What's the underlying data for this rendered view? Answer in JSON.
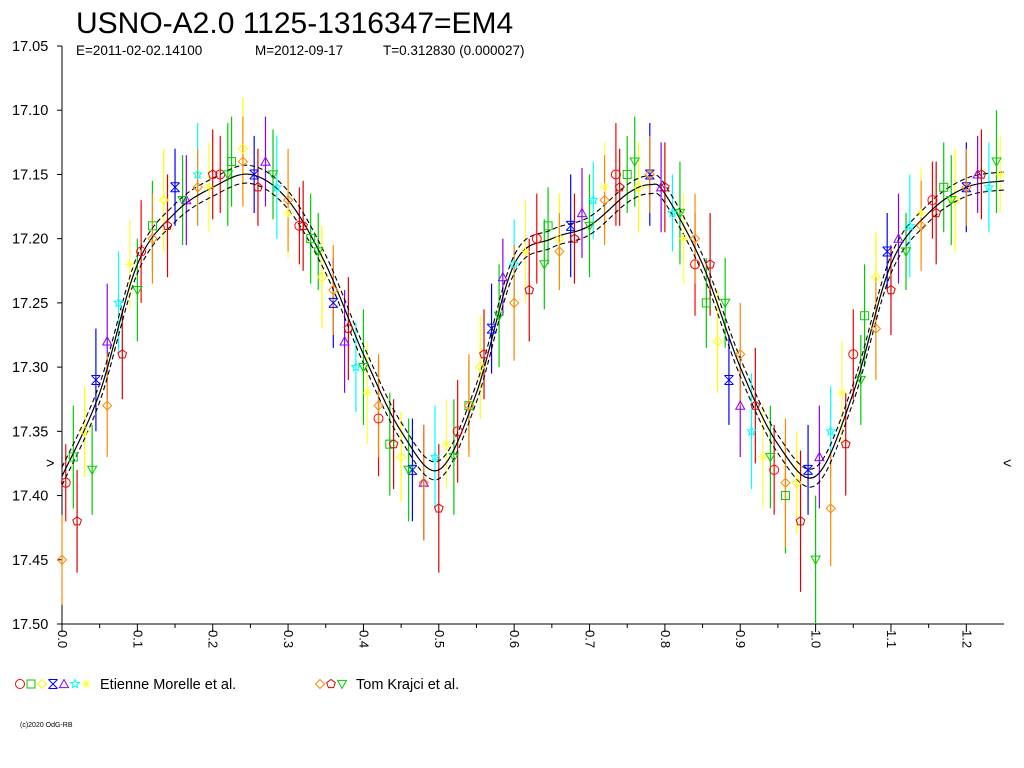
{
  "chart_data": {
    "type": "scatter",
    "title": "USNO-A2.0 1125-1316347=EM4",
    "epoch_label": "E=2011-02-02.14100",
    "max_label": "M=2012-09-17",
    "period_label": "T=0.312830 (0.000027)",
    "xlabel": "",
    "ylabel": "",
    "xlim": [
      0.0,
      1.25
    ],
    "ylim": [
      17.05,
      17.5
    ],
    "y_inverted": true,
    "yticks": [
      "17.05",
      "17.10",
      "17.15",
      "17.20",
      "17.25",
      "17.30",
      "17.35",
      "17.40",
      "17.45",
      "17.50"
    ],
    "xticks": [
      "0.0",
      "0.1",
      "0.2",
      "0.3",
      "0.4",
      "0.5",
      "0.6",
      "0.7",
      "0.8",
      "0.9",
      "1.0",
      "1.1",
      "1.2"
    ],
    "grid": false,
    "left_marker": ">",
    "right_marker": "<",
    "fit_curve": {
      "phase": [
        0.0,
        0.05,
        0.1,
        0.15,
        0.2,
        0.25,
        0.3,
        0.35,
        0.4,
        0.45,
        0.5,
        0.55,
        0.6,
        0.65,
        0.7,
        0.75,
        0.78,
        0.8,
        0.85,
        0.9,
        0.95,
        1.0,
        1.05,
        1.1,
        1.15,
        1.2,
        1.25
      ],
      "mag": [
        17.385,
        17.32,
        17.22,
        17.18,
        17.16,
        17.15,
        17.17,
        17.22,
        17.29,
        17.35,
        17.38,
        17.32,
        17.22,
        17.2,
        17.19,
        17.165,
        17.158,
        17.165,
        17.22,
        17.3,
        17.36,
        17.385,
        17.32,
        17.22,
        17.18,
        17.16,
        17.155
      ],
      "band_offset": 0.007
    },
    "series": [
      {
        "name": "Etienne Morelle et al.",
        "symbols": [
          "circle",
          "square",
          "diamond",
          "x-square",
          "triangle",
          "star",
          "asterisk"
        ],
        "colors": [
          "#ff0000",
          "#00cc00",
          "#ffff00",
          "#0000ff",
          "#8800ff",
          "#00ffff",
          "#ffff33"
        ],
        "phase": [
          0.005,
          0.015,
          0.03,
          0.045,
          0.06,
          0.075,
          0.09,
          0.105,
          0.12,
          0.135,
          0.15,
          0.165,
          0.18,
          0.195,
          0.21,
          0.225,
          0.24,
          0.255,
          0.27,
          0.285,
          0.3,
          0.315,
          0.33,
          0.345,
          0.36,
          0.375,
          0.39,
          0.405,
          0.42,
          0.435,
          0.45,
          0.465,
          0.48,
          0.495,
          0.51,
          0.525,
          0.54,
          0.555,
          0.57,
          0.585,
          0.6,
          0.615,
          0.63,
          0.645,
          0.66,
          0.675,
          0.69,
          0.705,
          0.72,
          0.735,
          0.75,
          0.765,
          0.78,
          0.795,
          0.81,
          0.825,
          0.84,
          0.855,
          0.87,
          0.885,
          0.9,
          0.915,
          0.93,
          0.945,
          0.96,
          0.975,
          0.99,
          1.005,
          1.02,
          1.035,
          1.05,
          1.065,
          1.08,
          1.095,
          1.11,
          1.125,
          1.14,
          1.155,
          1.17,
          1.185,
          1.2,
          1.215,
          1.23,
          1.245
        ],
        "mag": [
          17.39,
          17.37,
          17.35,
          17.31,
          17.28,
          17.25,
          17.22,
          17.21,
          17.19,
          17.17,
          17.16,
          17.17,
          17.15,
          17.16,
          17.15,
          17.14,
          17.13,
          17.15,
          17.14,
          17.16,
          17.18,
          17.19,
          17.2,
          17.23,
          17.25,
          17.28,
          17.3,
          17.32,
          17.34,
          17.36,
          17.37,
          17.38,
          17.39,
          17.37,
          17.36,
          17.35,
          17.33,
          17.3,
          17.27,
          17.23,
          17.22,
          17.21,
          17.2,
          17.19,
          17.2,
          17.19,
          17.18,
          17.17,
          17.16,
          17.15,
          17.15,
          17.16,
          17.15,
          17.16,
          17.18,
          17.2,
          17.22,
          17.25,
          17.28,
          17.31,
          17.33,
          17.35,
          17.37,
          17.38,
          17.4,
          17.39,
          17.38,
          17.37,
          17.35,
          17.32,
          17.29,
          17.26,
          17.23,
          17.21,
          17.2,
          17.19,
          17.18,
          17.17,
          17.16,
          17.17,
          17.16,
          17.15,
          17.16,
          17.15
        ],
        "err": [
          0.03,
          0.04,
          0.035,
          0.04,
          0.045,
          0.04,
          0.035,
          0.04,
          0.035,
          0.04,
          0.03,
          0.035,
          0.04,
          0.035,
          0.03,
          0.035,
          0.04,
          0.03,
          0.035,
          0.04,
          0.035,
          0.03,
          0.035,
          0.04,
          0.035,
          0.04,
          0.035,
          0.04,
          0.045,
          0.04,
          0.035,
          0.04,
          0.045,
          0.04,
          0.035,
          0.04,
          0.035,
          0.04,
          0.035,
          0.03,
          0.035,
          0.04,
          0.035,
          0.03,
          0.035,
          0.04,
          0.035,
          0.03,
          0.035,
          0.04,
          0.03,
          0.035,
          0.04,
          0.035,
          0.03,
          0.035,
          0.04,
          0.035,
          0.04,
          0.035,
          0.04,
          0.045,
          0.04,
          0.035,
          0.045,
          0.04,
          0.035,
          0.04,
          0.035,
          0.04,
          0.035,
          0.04,
          0.035,
          0.03,
          0.035,
          0.04,
          0.035,
          0.03,
          0.035,
          0.04,
          0.035,
          0.03,
          0.035,
          0.03
        ]
      },
      {
        "name": "Tom Krajci et al.",
        "symbols": [
          "diamond",
          "pentagon",
          "triangle-down"
        ],
        "colors": [
          "#ff8800",
          "#dd0000",
          "#00cc00"
        ],
        "phase": [
          0.0,
          0.02,
          0.04,
          0.06,
          0.08,
          0.1,
          0.12,
          0.14,
          0.16,
          0.18,
          0.2,
          0.22,
          0.24,
          0.26,
          0.28,
          0.3,
          0.32,
          0.34,
          0.36,
          0.38,
          0.4,
          0.42,
          0.44,
          0.46,
          0.48,
          0.5,
          0.52,
          0.54,
          0.56,
          0.58,
          0.6,
          0.62,
          0.64,
          0.66,
          0.68,
          0.7,
          0.72,
          0.74,
          0.76,
          0.78,
          0.8,
          0.82,
          0.84,
          0.86,
          0.88,
          0.9,
          0.92,
          0.94,
          0.96,
          0.98,
          1.0,
          1.02,
          1.04,
          1.06,
          1.08,
          1.1,
          1.12,
          1.14,
          1.16,
          1.18,
          1.2,
          1.22,
          1.24
        ],
        "mag": [
          17.45,
          17.42,
          17.38,
          17.33,
          17.29,
          17.24,
          17.2,
          17.19,
          17.17,
          17.16,
          17.15,
          17.15,
          17.14,
          17.16,
          17.15,
          17.17,
          17.19,
          17.21,
          17.24,
          17.27,
          17.3,
          17.33,
          17.36,
          17.38,
          17.39,
          17.41,
          17.37,
          17.33,
          17.29,
          17.26,
          17.25,
          17.24,
          17.22,
          17.21,
          17.2,
          17.19,
          17.17,
          17.16,
          17.14,
          17.15,
          17.16,
          17.18,
          17.2,
          17.22,
          17.25,
          17.29,
          17.33,
          17.37,
          17.39,
          17.42,
          17.45,
          17.41,
          17.36,
          17.31,
          17.27,
          17.24,
          17.21,
          17.19,
          17.18,
          17.17,
          17.16,
          17.15,
          17.14
        ],
        "err": [
          0.035,
          0.04,
          0.035,
          0.04,
          0.035,
          0.04,
          0.035,
          0.04,
          0.035,
          0.03,
          0.035,
          0.04,
          0.035,
          0.03,
          0.035,
          0.04,
          0.035,
          0.03,
          0.035,
          0.04,
          0.045,
          0.04,
          0.035,
          0.04,
          0.045,
          0.05,
          0.045,
          0.04,
          0.035,
          0.04,
          0.045,
          0.04,
          0.035,
          0.03,
          0.035,
          0.04,
          0.035,
          0.03,
          0.035,
          0.03,
          0.035,
          0.04,
          0.035,
          0.04,
          0.035,
          0.04,
          0.045,
          0.04,
          0.05,
          0.055,
          0.05,
          0.045,
          0.04,
          0.035,
          0.04,
          0.035,
          0.03,
          0.035,
          0.04,
          0.035,
          0.03,
          0.035,
          0.04
        ]
      }
    ],
    "legend": [
      {
        "label": "Etienne Morelle et al.",
        "symbols": [
          "circle",
          "square",
          "diamond",
          "x-square",
          "triangle",
          "star",
          "asterisk"
        ],
        "colors": [
          "#ff0000",
          "#00cc00",
          "#ffff00",
          "#0000ff",
          "#8800ff",
          "#00ffff",
          "#ffff33"
        ]
      },
      {
        "label": "Tom Krajci et al.",
        "symbols": [
          "diamond",
          "pentagon",
          "triangle-down"
        ],
        "colors": [
          "#ff8800",
          "#dd0000",
          "#00cc00"
        ]
      }
    ],
    "legend_placement": "bottom",
    "copyright": "(c)2020 OdG-RB"
  }
}
